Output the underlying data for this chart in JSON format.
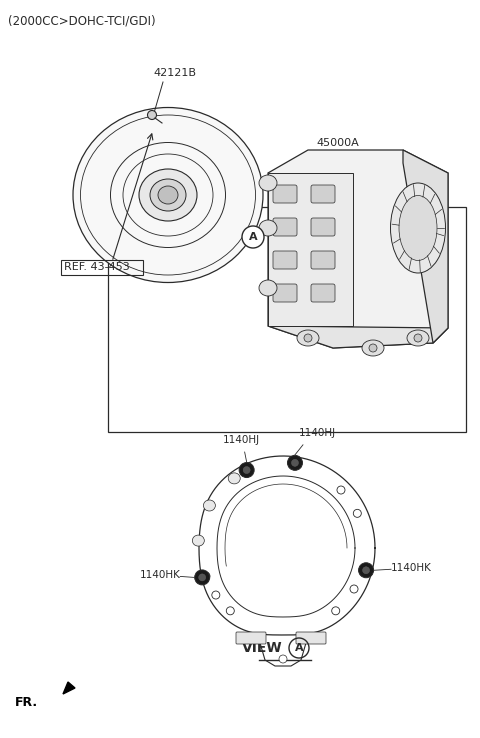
{
  "title": "(2000CC>DOHC-TCI/GDI)",
  "bg_color": "#ffffff",
  "label_42121B": "42121B",
  "label_45000A": "45000A",
  "label_ref": "REF. 43-453",
  "label_view": "VIEW",
  "label_fr": "FR.",
  "label_1140HJ_1": "1140HJ",
  "label_1140HJ_2": "1140HJ",
  "label_1140HK_1": "1140HK",
  "label_1140HK_2": "1140HK",
  "circle_A_label": "A",
  "line_color": "#2a2a2a",
  "text_color": "#2a2a2a"
}
